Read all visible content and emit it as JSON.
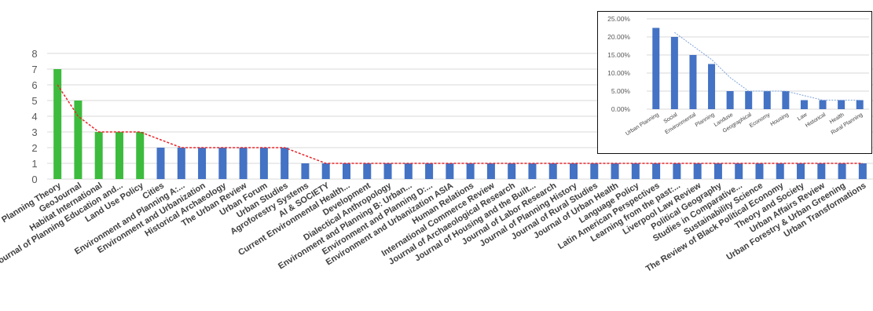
{
  "chart_data": [
    {
      "type": "bar",
      "title": "",
      "xlabel": "",
      "ylabel": "",
      "ylim": [
        0,
        8
      ],
      "yticks": [
        0,
        1,
        2,
        3,
        4,
        5,
        6,
        7,
        8
      ],
      "grid": "horizontal",
      "legend": "none",
      "categories": [
        "Planning Theory",
        "GeoJournal",
        "Habitat International",
        "Journal of Planning Education and...",
        "Land Use Policy",
        "Cities",
        "Environment and Planning A:...",
        "Environment and Urbanization",
        "Historical Archaeology",
        "The Urban Review",
        "Urban Forum",
        "Urban Studies",
        "Agroforestry Systems",
        "AI & SOCIETY",
        "Current Environmental Health...",
        "Development",
        "Dialectical Anthropology",
        "Environment and Planning B: Urban...",
        "Environment and Planning D:...",
        "Environment and Urbanization ASIA",
        "Human Relations",
        "International Commerce Review",
        "Journal of Archaeological Research",
        "Journal of Housing and the Built...",
        "Journal of Labor Research",
        "Journal of Planning History",
        "Journal of Rural Studies",
        "Journal of Urban Health",
        "Language Policy",
        "Latin American Perspectives",
        "Learning from the past:...",
        "Liverpool Law Review",
        "Political Geography",
        "Studies in Comparative...",
        "Sustainability Science",
        "The Review of Black Political Economy",
        "Theory and Society",
        "Urban Affairs Review",
        "Urban Forestry & Urban Greening",
        "Urban Transformations"
      ],
      "values": [
        7,
        5,
        3,
        3,
        3,
        2,
        2,
        2,
        2,
        2,
        2,
        2,
        1,
        1,
        1,
        1,
        1,
        1,
        1,
        1,
        1,
        1,
        1,
        1,
        1,
        1,
        1,
        1,
        1,
        1,
        1,
        1,
        1,
        1,
        1,
        1,
        1,
        1,
        1,
        1
      ],
      "trendline": [
        6,
        4,
        3,
        3,
        3,
        2.5,
        2,
        2,
        2,
        2,
        2,
        2,
        1.5,
        1,
        1,
        1,
        1,
        1,
        1,
        1,
        1,
        1,
        1,
        1,
        1,
        1,
        1,
        1,
        1,
        1,
        1,
        1,
        1,
        1,
        1,
        1,
        1,
        1,
        1,
        1
      ],
      "highlight_count": 5,
      "colors": {
        "highlight": "#3dbb3d",
        "bar": "#4472c4",
        "trendline": "#e8262b",
        "grid": "#d9d9d9"
      }
    },
    {
      "type": "bar",
      "title": "",
      "xlabel": "",
      "ylabel": "",
      "ylim": [
        0,
        25
      ],
      "yticks": [
        "0.00%",
        "5.00%",
        "10.00%",
        "15.00%",
        "20.00%",
        "25.00%"
      ],
      "grid": "horizontal",
      "legend": "none",
      "placement": "top-right inset",
      "categories": [
        "Urban Planning",
        "Social",
        "Environmental",
        "Planning",
        "Landuse",
        "Geographical",
        "Economy",
        "Housing",
        "Law",
        "Historical",
        "Health",
        "Rural Planning"
      ],
      "values": [
        22.5,
        20,
        15,
        12.5,
        5,
        5,
        5,
        5,
        2.5,
        2.5,
        2.5,
        2.5
      ],
      "trendline": [
        null,
        21.25,
        17.5,
        13.75,
        8.75,
        5,
        5,
        5,
        3.75,
        2.5,
        2.5,
        2.5
      ],
      "colors": {
        "bar": "#4472c4",
        "trendline": "#7fa3d9",
        "grid": "#d9d9d9"
      }
    }
  ]
}
